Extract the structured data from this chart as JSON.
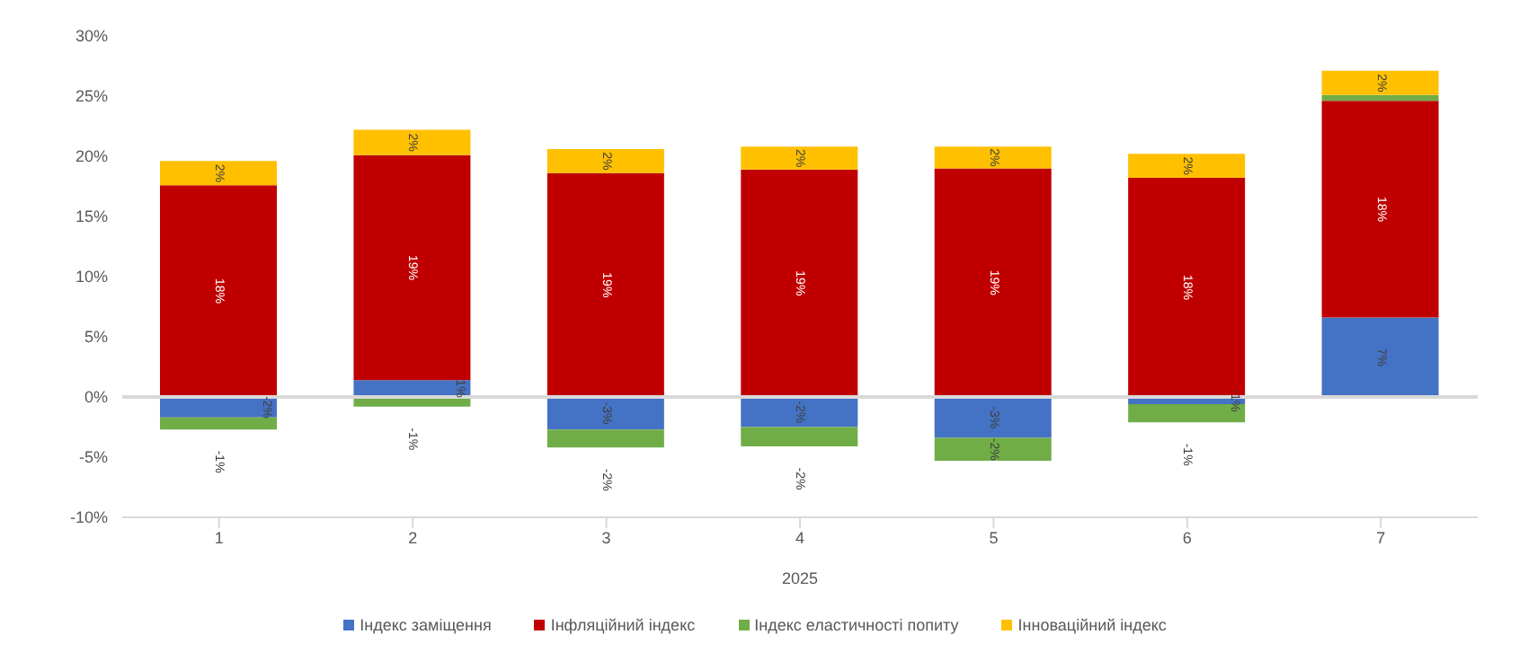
{
  "chart_data": {
    "type": "bar",
    "stacked": true,
    "categories": [
      "1",
      "2",
      "3",
      "4",
      "5",
      "6",
      "7"
    ],
    "xlabel": "2025",
    "series": [
      {
        "name": "Індекс заміщення",
        "color": "#4472c4",
        "values": [
          -1.7,
          1.4,
          -2.7,
          -2.5,
          -3.4,
          -0.6,
          6.6
        ],
        "value_labels": [
          "-2%",
          "1%",
          "-3%",
          "-2%",
          "-3%",
          "-1%",
          "7%"
        ]
      },
      {
        "name": "Інфляційний індекс",
        "color": "#c00000",
        "values": [
          17.6,
          18.7,
          18.6,
          18.9,
          19.0,
          18.2,
          18.0
        ],
        "value_labels": [
          "18%",
          "19%",
          "19%",
          "19%",
          "19%",
          "18%",
          "18%"
        ]
      },
      {
        "name": "Індекс еластичності попиту",
        "color": "#70ad47",
        "values": [
          -1.0,
          -0.8,
          -1.5,
          -1.6,
          -1.9,
          -1.5,
          0.5
        ],
        "value_labels": [
          "-1%",
          "-1%",
          "-2%",
          "-2%",
          "-2%",
          "-1%",
          null
        ]
      },
      {
        "name": "Інноваційний індекс",
        "color": "#ffc000",
        "values": [
          2.0,
          2.1,
          2.0,
          1.9,
          1.8,
          2.0,
          2.0
        ],
        "value_labels": [
          "2%",
          "2%",
          "2%",
          "2%",
          "2%",
          "2%",
          "2%"
        ]
      }
    ],
    "ylim": [
      -10,
      30
    ],
    "yticks": [
      {
        "value": -10,
        "label": "-10%"
      },
      {
        "value": -5,
        "label": "-5%"
      },
      {
        "value": 0,
        "label": "0%"
      },
      {
        "value": 5,
        "label": "5%"
      },
      {
        "value": 10,
        "label": "10%"
      },
      {
        "value": 15,
        "label": "15%"
      },
      {
        "value": 20,
        "label": "20%"
      },
      {
        "value": 25,
        "label": "25%"
      },
      {
        "value": 30,
        "label": "30%"
      }
    ],
    "ref_lines": [
      {
        "axis": "y",
        "value": 0,
        "color": "#d9d9d9"
      }
    ],
    "grid": false,
    "legend": "bottom"
  }
}
